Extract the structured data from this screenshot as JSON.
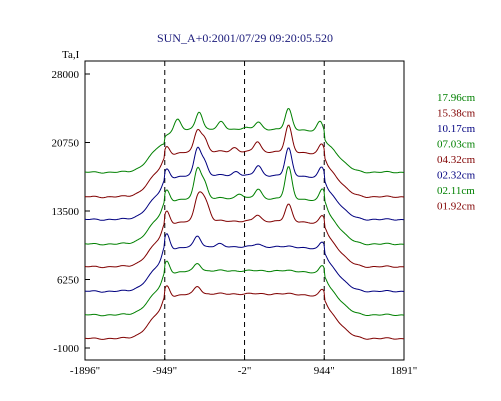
{
  "chart_data": {
    "type": "line",
    "title": "SUN_A+0:2001/07/29 09:20:05.520",
    "ylabel": "Ta,I",
    "xlabel": "",
    "xlim": [
      -1896,
      1891
    ],
    "ylim": [
      -1000,
      28000
    ],
    "x_ticks": [
      {
        "value": -1896,
        "label": "-1896\""
      },
      {
        "value": -949,
        "label": "-949\""
      },
      {
        "value": -2,
        "label": "-2\""
      },
      {
        "value": 944,
        "label": "944\""
      },
      {
        "value": 1891,
        "label": "1891\""
      }
    ],
    "y_ticks": [
      {
        "value": 28000,
        "label": "28000"
      },
      {
        "value": 20750,
        "label": "20750"
      },
      {
        "value": 13500,
        "label": "13500"
      },
      {
        "value": 6250,
        "label": "6250"
      },
      {
        "value": -1000,
        "label": "-1000"
      }
    ],
    "limb_markers": [
      -949,
      -2,
      944
    ],
    "series": [
      {
        "name": "17.96cm",
        "color": "#008000",
        "baseline": 17600,
        "amp": 8300,
        "peaks": [
          [
            -800,
            1.5
          ],
          [
            -540,
            2.3
          ],
          [
            -280,
            0.9
          ],
          [
            0,
            0.2
          ],
          [
            160,
            0.9
          ],
          [
            520,
            2.6
          ],
          [
            900,
            1.5
          ]
        ]
      },
      {
        "name": "15.38cm",
        "color": "#800000",
        "baseline": 15000,
        "amp": 8700,
        "peaks": [
          [
            -930,
            1.4
          ],
          [
            -560,
            2.6
          ],
          [
            -480,
            1.6
          ],
          [
            -120,
            0.5
          ],
          [
            150,
            1.2
          ],
          [
            520,
            3.2
          ],
          [
            920,
            1.6
          ]
        ]
      },
      {
        "name": "10.17cm",
        "color": "#000080",
        "baseline": 12600,
        "amp": 8500,
        "peaks": [
          [
            -930,
            1.6
          ],
          [
            -560,
            3.4
          ],
          [
            -480,
            1.7
          ],
          [
            -100,
            0.5
          ],
          [
            160,
            1.2
          ],
          [
            520,
            3.4
          ],
          [
            920,
            1.7
          ]
        ]
      },
      {
        "name": "07.03cm",
        "color": "#008000",
        "baseline": 10000,
        "amp": 8800,
        "peaks": [
          [
            -930,
            1.8
          ],
          [
            -560,
            3.6
          ],
          [
            -480,
            1.9
          ],
          [
            -60,
            0.6
          ],
          [
            160,
            1.1
          ],
          [
            520,
            3.8
          ],
          [
            930,
            1.9
          ]
        ]
      },
      {
        "name": "04.32cm",
        "color": "#800000",
        "baseline": 7600,
        "amp": 8800,
        "peaks": [
          [
            -930,
            2.0
          ],
          [
            -560,
            2.6
          ],
          [
            -500,
            2.2
          ],
          [
            -440,
            1.4
          ],
          [
            150,
            0.7
          ],
          [
            520,
            2.0
          ],
          [
            930,
            1.4
          ]
        ]
      },
      {
        "name": "02.32cm",
        "color": "#000080",
        "baseline": 5000,
        "amp": 8600,
        "peaks": [
          [
            -930,
            2.4
          ],
          [
            -560,
            1.4
          ],
          [
            -300,
            0.3
          ],
          [
            150,
            0.3
          ],
          [
            930,
            1.3
          ]
        ]
      },
      {
        "name": "02.11cm",
        "color": "#008000",
        "baseline": 2500,
        "amp": 8500,
        "peaks": [
          [
            -930,
            2.0
          ],
          [
            -560,
            1.0
          ],
          [
            930,
            1.4
          ]
        ]
      },
      {
        "name": "01.92cm",
        "color": "#800000",
        "baseline": 0,
        "amp": 8600,
        "peaks": [
          [
            -930,
            1.8
          ],
          [
            -560,
            1.0
          ],
          [
            930,
            1.3
          ]
        ]
      }
    ]
  }
}
